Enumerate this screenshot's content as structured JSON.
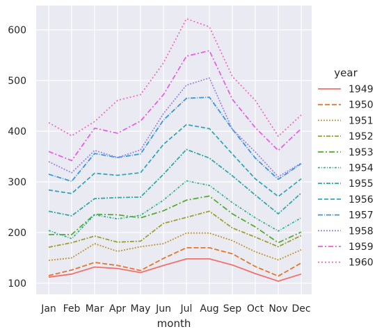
{
  "chart_data": {
    "type": "line",
    "xlabel": "month",
    "ylabel": "",
    "categories": [
      "Jan",
      "Feb",
      "Mar",
      "Apr",
      "May",
      "Jun",
      "Jul",
      "Aug",
      "Sep",
      "Oct",
      "Nov",
      "Dec"
    ],
    "ylim": [
      78,
      648
    ],
    "yticks": [
      100,
      200,
      300,
      400,
      500,
      600
    ],
    "grid": true,
    "background": "#eaeaf2",
    "legend": {
      "title": "year",
      "placement": "right"
    },
    "series": [
      {
        "name": "1949",
        "color": "#f0716b",
        "dash": "",
        "values": [
          112,
          118,
          132,
          129,
          121,
          135,
          148,
          148,
          136,
          119,
          104,
          118
        ]
      },
      {
        "name": "1950",
        "color": "#e2752c",
        "dash": "7,3",
        "values": [
          115,
          126,
          141,
          135,
          125,
          149,
          170,
          170,
          158,
          133,
          114,
          140
        ]
      },
      {
        "name": "1951",
        "color": "#c09631",
        "dash": "2,2",
        "values": [
          145,
          150,
          178,
          163,
          172,
          178,
          199,
          199,
          184,
          162,
          146,
          166
        ]
      },
      {
        "name": "1952",
        "color": "#9b9f30",
        "dash": "6,2,2,2",
        "values": [
          171,
          180,
          193,
          181,
          183,
          218,
          230,
          242,
          209,
          191,
          172,
          194
        ]
      },
      {
        "name": "1953",
        "color": "#52ac32",
        "dash": "8,3,2,3",
        "values": [
          196,
          196,
          236,
          235,
          229,
          243,
          264,
          272,
          237,
          211,
          180,
          201
        ]
      },
      {
        "name": "1954",
        "color": "#34b08e",
        "dash": "3,2,1,2",
        "values": [
          204,
          188,
          235,
          227,
          234,
          264,
          302,
          293,
          259,
          229,
          203,
          229
        ]
      },
      {
        "name": "1955",
        "color": "#33a7a5",
        "dash": "6,2,2,2",
        "values": [
          242,
          233,
          267,
          269,
          270,
          315,
          364,
          347,
          312,
          274,
          237,
          278
        ]
      },
      {
        "name": "1956",
        "color": "#33a5b6",
        "dash": "6,3",
        "values": [
          284,
          277,
          317,
          313,
          318,
          374,
          413,
          405,
          355,
          306,
          271,
          306
        ]
      },
      {
        "name": "1957",
        "color": "#3596e1",
        "dash": "7,2,1,2",
        "values": [
          315,
          301,
          356,
          348,
          355,
          422,
          465,
          467,
          404,
          347,
          305,
          336
        ]
      },
      {
        "name": "1958",
        "color": "#9a86e8",
        "dash": "2,2",
        "values": [
          340,
          318,
          362,
          348,
          363,
          435,
          491,
          505,
          404,
          359,
          310,
          337
        ]
      },
      {
        "name": "1959",
        "color": "#e55ee8",
        "dash": "7,3,2,3",
        "values": [
          360,
          342,
          406,
          396,
          420,
          472,
          548,
          559,
          463,
          407,
          362,
          405
        ]
      },
      {
        "name": "1960",
        "color": "#f26ac1",
        "dash": "2,3",
        "values": [
          417,
          391,
          419,
          461,
          472,
          535,
          622,
          606,
          508,
          461,
          390,
          432
        ]
      }
    ]
  }
}
